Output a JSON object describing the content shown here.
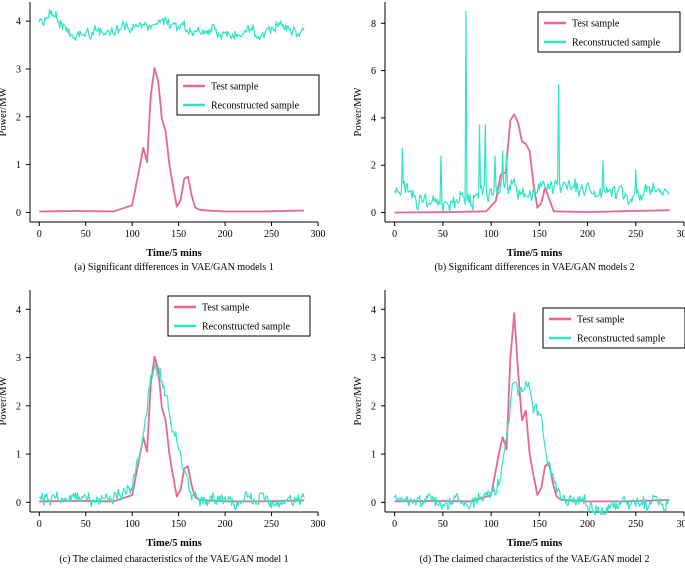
{
  "colors": {
    "test": "#e8678f",
    "recon": "#2ee6c6",
    "axis": "#000000"
  },
  "chart_data": [
    {
      "id": "a",
      "type": "line",
      "caption": "(a) Significant differences in VAE/GAN models 1",
      "xlabel": "Time/5 mins",
      "ylabel": "Power/MW",
      "xlim": [
        -10,
        300
      ],
      "ylim": [
        -0.2,
        4.4
      ],
      "xticks": [
        0,
        50,
        100,
        150,
        200,
        250,
        300
      ],
      "yticks": [
        0,
        1,
        2,
        3,
        4
      ],
      "legend": {
        "position": "upper-right",
        "entries": [
          "Test sample",
          "Reconstructed sample"
        ]
      },
      "series": [
        {
          "name": "Test sample",
          "color": "test",
          "x": [
            0,
            40,
            80,
            100,
            108,
            112,
            116,
            120,
            124,
            128,
            132,
            136,
            140,
            144,
            148,
            152,
            156,
            160,
            164,
            168,
            172,
            180,
            200,
            240,
            285
          ],
          "y": [
            0.02,
            0.03,
            0.02,
            0.15,
            0.95,
            1.35,
            1.05,
            2.45,
            3.02,
            2.75,
            1.95,
            1.7,
            1.0,
            0.55,
            0.12,
            0.25,
            0.7,
            0.75,
            0.35,
            0.1,
            0.06,
            0.04,
            0.02,
            0.02,
            0.04
          ]
        },
        {
          "name": "Reconstructed sample",
          "color": "recon",
          "noisy": true,
          "noise_amp": 0.16,
          "x": [
            0,
            10,
            20,
            30,
            40,
            60,
            80,
            100,
            120,
            140,
            160,
            180,
            200,
            220,
            240,
            260,
            285
          ],
          "y": [
            4.0,
            4.15,
            4.1,
            3.75,
            3.7,
            3.75,
            3.8,
            3.85,
            3.95,
            3.95,
            3.8,
            3.8,
            3.75,
            3.7,
            3.8,
            3.9,
            3.8
          ]
        }
      ]
    },
    {
      "id": "b",
      "type": "line",
      "caption": "(b) Significant differences in VAE/GAN models 2",
      "xlabel": "Time/5 mins",
      "ylabel": "Power/MW",
      "xlim": [
        -10,
        300
      ],
      "ylim": [
        -0.4,
        8.9
      ],
      "xticks": [
        0,
        50,
        100,
        150,
        200,
        250,
        300
      ],
      "yticks": [
        0,
        2,
        4,
        6,
        8
      ],
      "legend": {
        "position": "upper-right",
        "entries": [
          "Test sample",
          "Reconstructed sample"
        ]
      },
      "series": [
        {
          "name": "Test sample",
          "color": "test",
          "x": [
            0,
            60,
            95,
            105,
            110,
            115,
            120,
            124,
            128,
            132,
            136,
            140,
            144,
            148,
            152,
            156,
            160,
            165,
            200,
            285
          ],
          "y": [
            0.0,
            0.02,
            0.05,
            0.5,
            1.6,
            1.7,
            3.9,
            4.15,
            3.8,
            3.0,
            2.9,
            2.6,
            1.2,
            0.2,
            0.4,
            1.05,
            0.6,
            0.05,
            0.02,
            0.1
          ]
        },
        {
          "name": "Reconstructed sample",
          "color": "recon",
          "noisy": true,
          "noise_amp": 0.45,
          "x": [
            0,
            10,
            20,
            40,
            60,
            80,
            100,
            120,
            140,
            160,
            180,
            200,
            220,
            240,
            260,
            285
          ],
          "y": [
            0.9,
            1.1,
            0.7,
            0.4,
            0.5,
            0.7,
            0.9,
            1.1,
            1.0,
            1.0,
            1.0,
            1.0,
            1.0,
            0.7,
            0.9,
            0.8
          ],
          "spikes": [
            [
              8,
              2.7
            ],
            [
              48,
              2.4
            ],
            [
              74,
              8.5
            ],
            [
              88,
              3.7
            ],
            [
              94,
              3.7
            ],
            [
              104,
              2.4
            ],
            [
              112,
              2.6
            ],
            [
              116,
              2.4
            ],
            [
              170,
              5.4
            ],
            [
              216,
              2.2
            ],
            [
              250,
              1.8
            ]
          ]
        }
      ]
    },
    {
      "id": "c",
      "type": "line",
      "caption": "(c) The claimed characteristics of the VAE/GAN model 1",
      "xlabel": "Time/5 mins",
      "ylabel": "Power/MW",
      "xlim": [
        -10,
        300
      ],
      "ylim": [
        -0.2,
        4.4
      ],
      "xticks": [
        0,
        50,
        100,
        150,
        200,
        250,
        300
      ],
      "yticks": [
        0,
        1,
        2,
        3,
        4
      ],
      "legend": {
        "position": "upper-right",
        "entries": [
          "Test sample",
          "Reconstructed sample"
        ]
      },
      "series": [
        {
          "name": "Test sample",
          "color": "test",
          "x": [
            0,
            40,
            80,
            100,
            108,
            112,
            116,
            120,
            124,
            128,
            132,
            136,
            140,
            144,
            148,
            152,
            156,
            160,
            164,
            168,
            172,
            180,
            200,
            240,
            285
          ],
          "y": [
            0.02,
            0.03,
            0.02,
            0.15,
            0.95,
            1.35,
            1.05,
            2.45,
            3.02,
            2.75,
            1.95,
            1.7,
            1.0,
            0.55,
            0.12,
            0.25,
            0.7,
            0.75,
            0.35,
            0.1,
            0.06,
            0.04,
            0.02,
            0.02,
            0.04
          ]
        },
        {
          "name": "Reconstructed sample",
          "color": "recon",
          "noisy": true,
          "noise_amp": 0.18,
          "x": [
            0,
            40,
            80,
            100,
            108,
            114,
            120,
            126,
            130,
            136,
            142,
            148,
            154,
            160,
            166,
            172,
            180,
            200,
            240,
            285
          ],
          "y": [
            0.05,
            0.07,
            0.06,
            0.3,
            1.0,
            1.7,
            2.55,
            2.7,
            2.65,
            2.3,
            1.6,
            1.25,
            0.75,
            0.3,
            0.15,
            0.08,
            0.06,
            0.02,
            0.05,
            0.05
          ]
        }
      ]
    },
    {
      "id": "d",
      "type": "line",
      "caption": "(d) The claimed characteristics of the VAE/GAN model 2",
      "xlabel": "Time/5 mins",
      "ylabel": "Power/MW",
      "xlim": [
        -10,
        300
      ],
      "ylim": [
        -0.2,
        4.4
      ],
      "xticks": [
        0,
        50,
        100,
        150,
        200,
        250,
        300
      ],
      "yticks": [
        0,
        1,
        2,
        3,
        4
      ],
      "legend": {
        "position": "upper-right",
        "entries": [
          "Test sample",
          "Reconstructed sample"
        ]
      },
      "series": [
        {
          "name": "Test sample",
          "color": "test",
          "x": [
            0,
            40,
            80,
            100,
            108,
            112,
            116,
            120,
            124,
            128,
            132,
            136,
            140,
            144,
            148,
            152,
            156,
            160,
            164,
            168,
            172,
            180,
            200,
            240,
            285
          ],
          "y": [
            0.02,
            0.03,
            0.02,
            0.15,
            1.0,
            1.35,
            1.1,
            3.0,
            3.92,
            2.7,
            1.7,
            1.9,
            1.0,
            0.55,
            0.15,
            0.3,
            0.75,
            0.82,
            0.4,
            0.12,
            0.06,
            0.04,
            0.02,
            0.02,
            0.05
          ]
        },
        {
          "name": "Reconstructed sample",
          "color": "recon",
          "noisy": true,
          "noise_amp": 0.2,
          "x": [
            0,
            40,
            80,
            100,
            110,
            116,
            122,
            126,
            132,
            138,
            144,
            150,
            156,
            162,
            168,
            174,
            180,
            200,
            220,
            240,
            285
          ],
          "y": [
            0.02,
            0.04,
            0.02,
            0.1,
            0.5,
            1.4,
            2.4,
            2.55,
            2.25,
            2.4,
            2.0,
            1.8,
            1.1,
            0.6,
            0.3,
            0.1,
            0.04,
            -0.05,
            -0.15,
            -0.05,
            0.0
          ]
        }
      ]
    }
  ]
}
